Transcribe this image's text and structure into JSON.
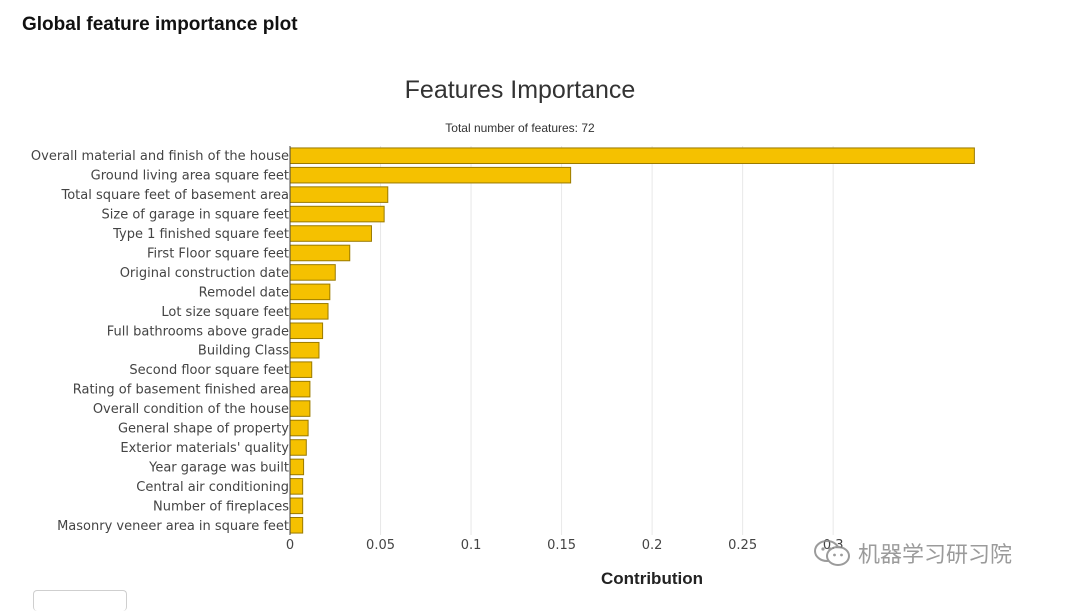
{
  "page": {
    "heading": "Global feature importance plot"
  },
  "watermark": {
    "text": "机器学习研习院"
  },
  "chart_data": {
    "type": "bar",
    "orientation": "horizontal",
    "title": "Features Importance",
    "subtitle": "Total number of features: 72",
    "xlabel": "Contribution",
    "ylabel": "",
    "xlim": [
      0,
      0.38
    ],
    "xticks": [
      0,
      0.05,
      0.1,
      0.15,
      0.2,
      0.25,
      0.3
    ],
    "xtick_labels": [
      "0",
      "0.05",
      "0.1",
      "0.15",
      "0.2",
      "0.25",
      "0.3"
    ],
    "grid": true,
    "bar_color": "#f5c100",
    "categories": [
      "Overall material and finish of the house",
      "Ground living area square feet",
      "Total square feet of basement area",
      "Size of garage in square feet",
      "Type 1 finished square feet",
      "First Floor square feet",
      "Original construction date",
      "Remodel date",
      "Lot size square feet",
      "Full bathrooms above grade",
      "Building Class",
      "Second floor square feet",
      "Rating of basement finished area",
      "Overall condition of the house",
      "General shape of property",
      "Exterior materials' quality",
      "Year garage was built",
      "Central air conditioning",
      "Number of fireplaces",
      "Masonry veneer area in square feet"
    ],
    "values": [
      0.378,
      0.155,
      0.054,
      0.052,
      0.045,
      0.033,
      0.025,
      0.022,
      0.021,
      0.018,
      0.016,
      0.012,
      0.011,
      0.011,
      0.01,
      0.009,
      0.0075,
      0.007,
      0.007,
      0.007
    ]
  }
}
